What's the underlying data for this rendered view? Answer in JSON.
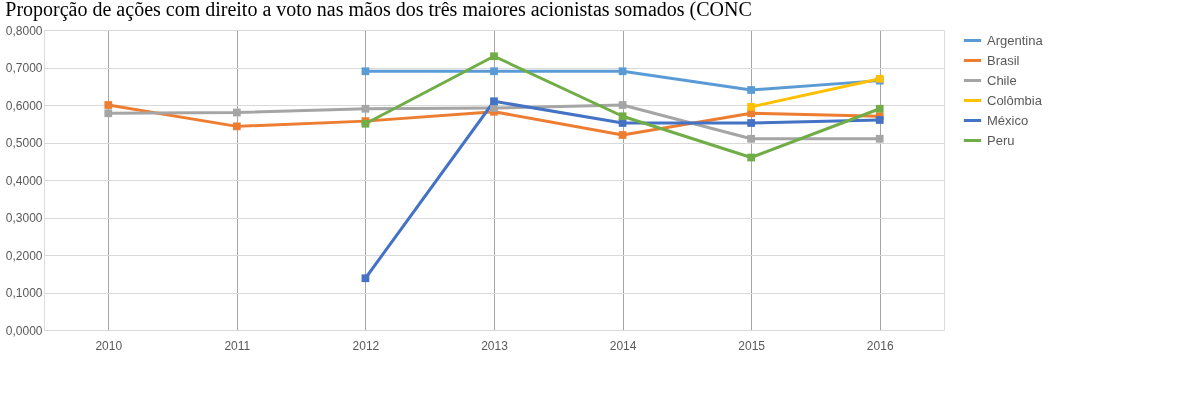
{
  "chart_data": {
    "type": "line",
    "title": "Proporção de ações com direito a voto nas mãos dos três maiores acionistas somados (CONC",
    "categories": [
      "2010",
      "2011",
      "2012",
      "2013",
      "2014",
      "2015",
      "2016"
    ],
    "series": [
      {
        "name": "Argentina",
        "color": "#5b9bd5",
        "values": [
          null,
          null,
          0.69,
          0.69,
          0.69,
          0.64,
          0.665
        ]
      },
      {
        "name": "Brasil",
        "color": "#ed7d31",
        "values": [
          0.6,
          0.543,
          0.557,
          0.582,
          0.52,
          0.578,
          0.57
        ]
      },
      {
        "name": "Chile",
        "color": "#a5a5a5",
        "values": [
          0.578,
          0.58,
          0.59,
          0.592,
          0.6,
          0.51,
          0.51
        ]
      },
      {
        "name": "Colômbia",
        "color": "#ffc000",
        "values": [
          null,
          null,
          null,
          null,
          null,
          0.595,
          0.67
        ]
      },
      {
        "name": "México",
        "color": "#4472c4",
        "values": [
          null,
          null,
          0.138,
          0.61,
          0.552,
          0.552,
          0.56
        ]
      },
      {
        "name": "Peru",
        "color": "#70ad47",
        "values": [
          null,
          null,
          0.55,
          0.73,
          0.57,
          0.46,
          0.59
        ]
      }
    ],
    "ylim": [
      0,
      0.8
    ],
    "yticks": [
      {
        "value": 0,
        "label": "0,0000"
      },
      {
        "value": 0.1,
        "label": "0,1000"
      },
      {
        "value": 0.2,
        "label": "0,2000"
      },
      {
        "value": 0.3,
        "label": "0,3000"
      },
      {
        "value": 0.4,
        "label": "0,4000"
      },
      {
        "value": 0.5,
        "label": "0,5000"
      },
      {
        "value": 0.6,
        "label": "0,6000"
      },
      {
        "value": 0.7,
        "label": "0,7000"
      },
      {
        "value": 0.8,
        "label": "0,8000"
      }
    ],
    "grid": true,
    "legend": "right",
    "marker": "square",
    "line_style": "solid"
  }
}
